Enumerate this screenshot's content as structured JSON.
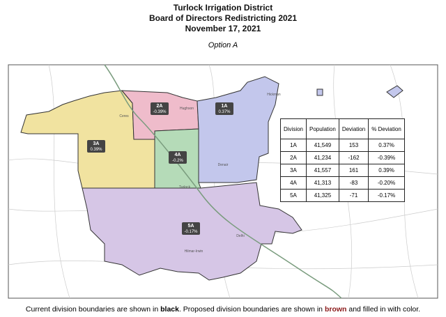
{
  "header": {
    "organization": "Turlock Irrigation District",
    "title": "Board of Directors Redistricting 2021",
    "date": "November 17, 2021",
    "option": "Option A"
  },
  "map": {
    "divisions": [
      {
        "name": "1A",
        "deviation": "0.37%"
      },
      {
        "name": "2A",
        "deviation": "-0.39%"
      },
      {
        "name": "3A",
        "deviation": "0.39%"
      },
      {
        "name": "4A",
        "deviation": "-0.2%"
      },
      {
        "name": "5A",
        "deviation": "-0.17%"
      }
    ],
    "places": [
      "Ceres",
      "Hughson",
      "Hickman",
      "Denair",
      "Turlock",
      "Delhi",
      "Hilmar-Irwin"
    ]
  },
  "table": {
    "headers": [
      "Division",
      "Population",
      "Deviation",
      "% Deviation"
    ],
    "rows": [
      [
        "1A",
        "41,549",
        "153",
        "0.37%"
      ],
      [
        "2A",
        "41,234",
        "-162",
        "-0.39%"
      ],
      [
        "3A",
        "41,557",
        "161",
        "0.39%"
      ],
      [
        "4A",
        "41,313",
        "-83",
        "-0.20%"
      ],
      [
        "5A",
        "41,325",
        "-71",
        "-0.17%"
      ]
    ]
  },
  "caption": {
    "part1": "Current division boundaries are shown in ",
    "black": "black",
    "part2": ". Proposed division boundaries are shown in ",
    "brown": "brown",
    "part3": " and filled in with color."
  }
}
